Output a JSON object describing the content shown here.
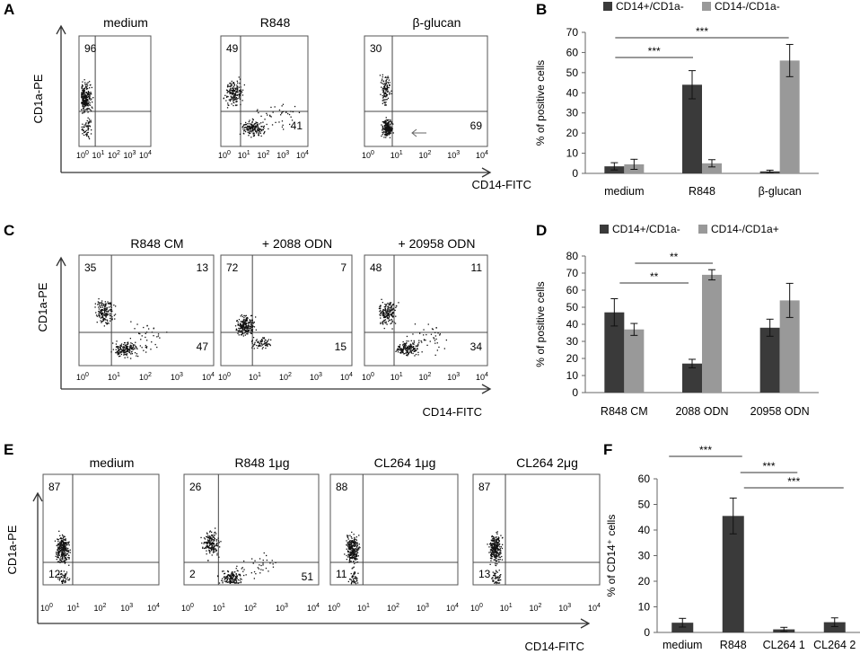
{
  "panel_letters": {
    "a": "A",
    "b": "B",
    "c": "C",
    "d": "D",
    "e": "E",
    "f": "F"
  },
  "flow_rows": [
    {
      "ylabel": "CD1a-PE",
      "xlabel": "CD14-FITC",
      "plots": [
        {
          "title": "medium",
          "numbers": [
            {
              "pos": "ul",
              "text": "96"
            }
          ],
          "cloud": "single_ul"
        },
        {
          "title": "R848",
          "numbers": [
            {
              "pos": "ul",
              "text": "49"
            },
            {
              "pos": "lr",
              "text": "41"
            }
          ],
          "cloud": "split"
        },
        {
          "title": "β-glucan",
          "numbers": [
            {
              "pos": "ul",
              "text": "30"
            },
            {
              "pos": "lr",
              "text": "69"
            }
          ],
          "cloud": "ll_heavy",
          "arrow": true
        }
      ]
    },
    {
      "ylabel": "CD1a-PE",
      "xlabel": "CD14-FITC",
      "plots": [
        {
          "title": "R848 CM",
          "numbers": [
            {
              "pos": "ul",
              "text": "35"
            },
            {
              "pos": "ur",
              "text": "13"
            },
            {
              "pos": "lr",
              "text": "47"
            }
          ],
          "cloud": "split"
        },
        {
          "title": "+ 2088 ODN",
          "numbers": [
            {
              "pos": "ul",
              "text": "72"
            },
            {
              "pos": "ur",
              "text": "7"
            },
            {
              "pos": "lr",
              "text": "15"
            }
          ],
          "cloud": "mid"
        },
        {
          "title": "+ 20958 ODN",
          "numbers": [
            {
              "pos": "ul",
              "text": "48"
            },
            {
              "pos": "ur",
              "text": "11"
            },
            {
              "pos": "lr",
              "text": "34"
            }
          ],
          "cloud": "split"
        }
      ]
    },
    {
      "ylabel": "CD1a-PE",
      "xlabel": "CD14-FITC",
      "plots": [
        {
          "title": "medium",
          "numbers": [
            {
              "pos": "ul",
              "text": "87"
            },
            {
              "pos": "ll",
              "text": "12"
            }
          ],
          "cloud": "single_ul"
        },
        {
          "title": "R848 1μg",
          "numbers": [
            {
              "pos": "ul",
              "text": "26"
            },
            {
              "pos": "ll",
              "text": "2"
            },
            {
              "pos": "lr",
              "text": "51"
            }
          ],
          "cloud": "split"
        },
        {
          "title": "CL264 1μg",
          "numbers": [
            {
              "pos": "ul",
              "text": "88"
            },
            {
              "pos": "ll",
              "text": "11"
            }
          ],
          "cloud": "single_ul"
        },
        {
          "title": "CL264 2μg",
          "numbers": [
            {
              "pos": "ul",
              "text": "87"
            },
            {
              "pos": "ll",
              "text": "13"
            }
          ],
          "cloud": "single_ul"
        }
      ]
    }
  ],
  "flow_tick_labels": [
    "10",
    "10",
    "10",
    "10",
    "10"
  ],
  "flow_tick_exponents": [
    "0",
    "1",
    "2",
    "3",
    "4"
  ],
  "chart_data": [
    {
      "panel": "B",
      "type": "bar",
      "categories": [
        "medium",
        "R848",
        "β-glucan"
      ],
      "series": [
        {
          "name": "CD14+/CD1a-",
          "color": "#3a3a3a",
          "values": [
            3.5,
            44,
            1
          ],
          "errors": [
            1.8,
            7,
            0.6
          ]
        },
        {
          "name": "CD14-/CD1a-",
          "color": "#999999",
          "values": [
            4.5,
            5,
            56
          ],
          "errors": [
            2.5,
            1.8,
            8
          ]
        }
      ],
      "ylabel": "% of positive cells",
      "yticks": [
        0,
        10,
        20,
        30,
        40,
        50,
        60,
        70
      ],
      "ylim": [
        0,
        70
      ],
      "sig": [
        {
          "label": "***",
          "from": 0,
          "to": 1
        },
        {
          "label": "***",
          "from": 0,
          "to": 2
        }
      ]
    },
    {
      "panel": "D",
      "type": "bar",
      "categories": [
        "R848 CM",
        "2088 ODN",
        "20958 ODN"
      ],
      "series": [
        {
          "name": "CD14+/CD1a-",
          "color": "#3a3a3a",
          "values": [
            47,
            17,
            38
          ],
          "errors": [
            8,
            2.5,
            5
          ]
        },
        {
          "name": "CD14-/CD1a+",
          "color": "#999999",
          "values": [
            37,
            69,
            54
          ],
          "errors": [
            3.5,
            3,
            10
          ]
        }
      ],
      "ylabel": "% of positive cells",
      "yticks": [
        0,
        10,
        20,
        30,
        40,
        50,
        60,
        70,
        80
      ],
      "ylim": [
        0,
        80
      ],
      "sig": [
        {
          "label": "**",
          "from": 0,
          "to": 1
        },
        {
          "label": "**",
          "from": 0,
          "to": 1
        }
      ]
    },
    {
      "panel": "F",
      "type": "bar",
      "categories": [
        "medium",
        "R848",
        "CL264 1",
        "CL264 2"
      ],
      "series": [
        {
          "name": "CD14+",
          "color": "#3a3a3a",
          "values": [
            3.8,
            45.5,
            1.2,
            4
          ],
          "errors": [
            1.7,
            7,
            0.8,
            1.7
          ]
        }
      ],
      "ylabel": "% of CD14⁺ cells",
      "yticks": [
        0,
        10,
        20,
        30,
        40,
        50,
        60
      ],
      "ylim": [
        0,
        60
      ],
      "sig": [
        {
          "label": "***",
          "from": 0,
          "to": 1
        },
        {
          "label": "***",
          "from": 1,
          "to": 2
        },
        {
          "label": "***",
          "from": 1,
          "to": 3
        }
      ]
    }
  ]
}
